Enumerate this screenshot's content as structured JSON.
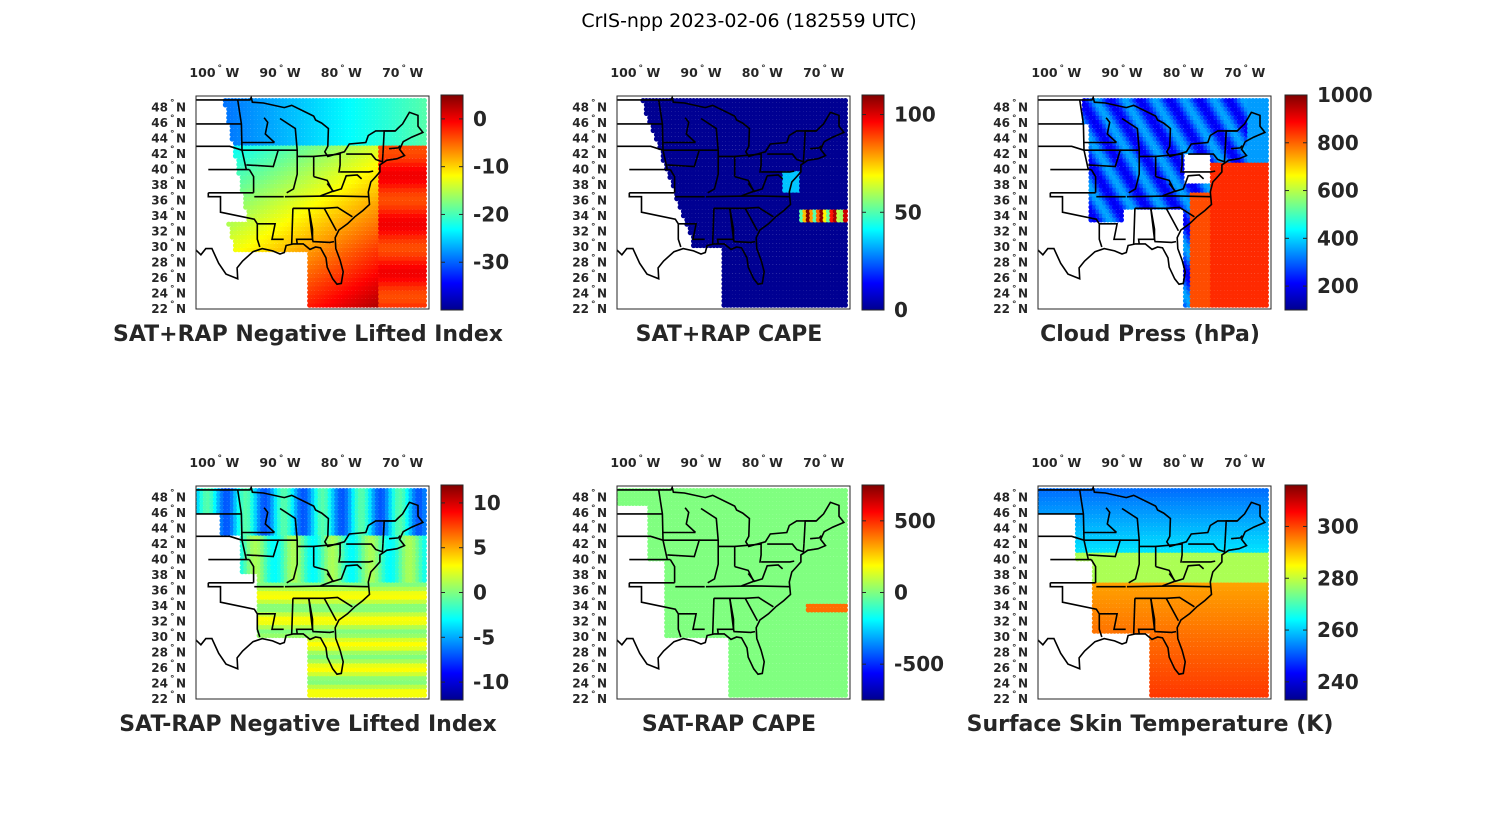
{
  "figure": {
    "title": "CrIS-npp 2023-02-06 (182559 UTC)"
  },
  "axes": {
    "lat_ticks": [
      {
        "deg": "48",
        "hemi": "N"
      },
      {
        "deg": "46",
        "hemi": "N"
      },
      {
        "deg": "44",
        "hemi": "N"
      },
      {
        "deg": "42",
        "hemi": "N"
      },
      {
        "deg": "40",
        "hemi": "N"
      },
      {
        "deg": "38",
        "hemi": "N"
      },
      {
        "deg": "36",
        "hemi": "N"
      },
      {
        "deg": "34",
        "hemi": "N"
      },
      {
        "deg": "32",
        "hemi": "N"
      },
      {
        "deg": "30",
        "hemi": "N"
      },
      {
        "deg": "28",
        "hemi": "N"
      },
      {
        "deg": "26",
        "hemi": "N"
      },
      {
        "deg": "24",
        "hemi": "N"
      },
      {
        "deg": "22",
        "hemi": "N"
      }
    ],
    "lon_ticks": [
      {
        "deg": "100",
        "hemi": "W"
      },
      {
        "deg": "90",
        "hemi": "W"
      },
      {
        "deg": "80",
        "hemi": "W"
      },
      {
        "deg": "70",
        "hemi": "W"
      }
    ],
    "degree_symbol": "°"
  },
  "colors": {
    "colormap": "jet",
    "state_lines": "#000000",
    "axes_box": "#262626"
  },
  "chart_data": [
    {
      "type": "heatmap",
      "id": "sat-rap-neg-li",
      "title": "SAT+RAP Negative Lifted Index",
      "clim": [
        -40,
        5
      ],
      "cb_ticks": [
        0,
        -10,
        -20,
        -30
      ],
      "cb_tick_labels": [
        "0",
        "-10",
        "-20",
        "-30"
      ],
      "lat_range": [
        22,
        49.5
      ],
      "lon_range": [
        -104,
        -66
      ],
      "field_description": "swath: cold (-30 to -20) over Great Lakes/north, -10 to -5 over central/southeast, near 0 offshore east"
    },
    {
      "type": "heatmap",
      "id": "sat-rap-cape",
      "title": "SAT+RAP CAPE",
      "clim": [
        0,
        110
      ],
      "cb_ticks": [
        100,
        50,
        0
      ],
      "cb_tick_labels": [
        "100",
        "50",
        "0"
      ],
      "lat_range": [
        22,
        49.5
      ],
      "lon_range": [
        -104,
        -66
      ]
    },
    {
      "type": "heatmap",
      "id": "cloud-press",
      "title": "Cloud Press (hPa)",
      "clim": [
        100,
        1000
      ],
      "cb_ticks": [
        1000,
        800,
        600,
        400,
        200
      ],
      "cb_tick_labels": [
        "1000",
        "800",
        "600",
        "400",
        "200"
      ],
      "lat_range": [
        22,
        49.5
      ],
      "lon_range": [
        -104,
        -66
      ]
    },
    {
      "type": "heatmap",
      "id": "sat-minus-rap-neg-li",
      "title": "SAT-RAP Negative Lifted Index",
      "clim": [
        -12,
        12
      ],
      "cb_ticks": [
        10,
        5,
        0,
        -5,
        -10
      ],
      "cb_tick_labels": [
        "10",
        "5",
        "0",
        "-5",
        "-10"
      ],
      "lat_range": [
        22,
        49.5
      ],
      "lon_range": [
        -104,
        -66
      ]
    },
    {
      "type": "heatmap",
      "id": "sat-minus-rap-cape",
      "title": "SAT-RAP CAPE",
      "clim": [
        -750,
        750
      ],
      "cb_ticks": [
        500,
        0,
        -500
      ],
      "cb_tick_labels": [
        "500",
        "0",
        "-500"
      ],
      "lat_range": [
        22,
        49.5
      ],
      "lon_range": [
        -104,
        -66
      ]
    },
    {
      "type": "heatmap",
      "id": "skin-temp",
      "title": "Surface Skin Temperature (K)",
      "clim": [
        233,
        316
      ],
      "cb_ticks": [
        300,
        280,
        260,
        240
      ],
      "cb_tick_labels": [
        "300",
        "280",
        "260",
        "240"
      ],
      "lat_range": [
        22,
        49.5
      ],
      "lon_range": [
        -104,
        -66
      ]
    }
  ]
}
